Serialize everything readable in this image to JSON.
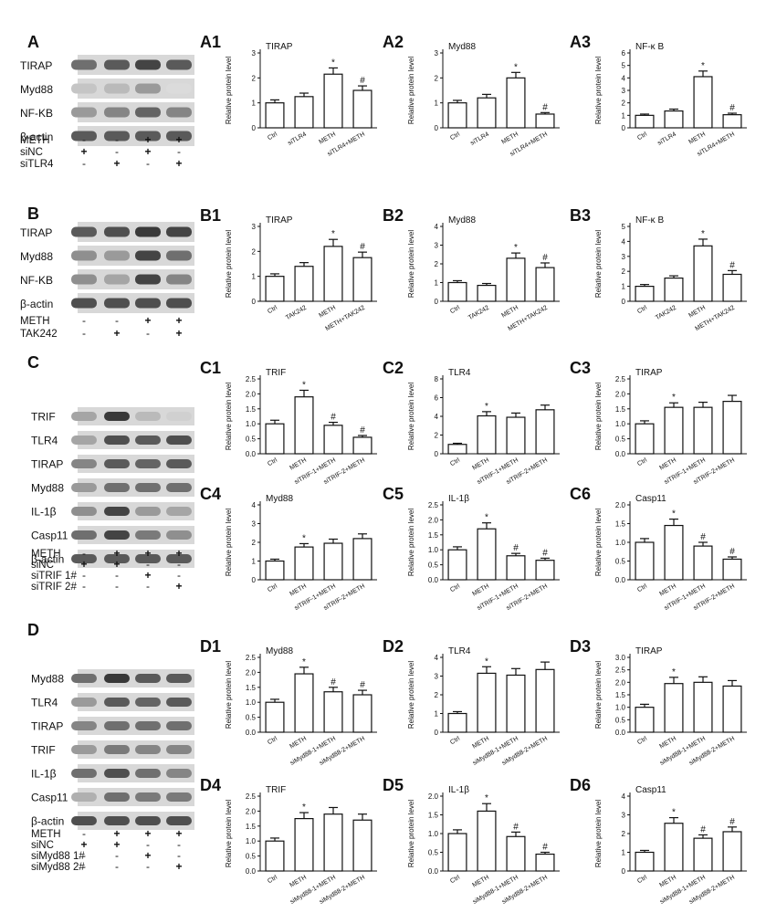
{
  "panels": [
    {
      "id": "A",
      "row_labels": [
        "TIRAP",
        "Myd88",
        "NF-KB",
        "β-actin"
      ],
      "cond_labels": [
        "METH",
        "siNC",
        "siTLR4"
      ],
      "cond_signs": [
        [
          "-",
          "-",
          "+",
          "+"
        ],
        [
          "+",
          "-",
          "+",
          "-"
        ],
        [
          "-",
          "+",
          "-",
          "+"
        ]
      ],
      "band_intensity": [
        [
          0.6,
          0.7,
          0.8,
          0.7
        ],
        [
          0.2,
          0.25,
          0.4,
          0.1
        ],
        [
          0.4,
          0.5,
          0.65,
          0.5
        ],
        [
          0.7,
          0.7,
          0.7,
          0.7
        ]
      ]
    },
    {
      "id": "B",
      "row_labels": [
        "TIRAP",
        "Myd88",
        "NF-KB",
        "β-actin"
      ],
      "cond_labels": [
        "METH",
        "TAK242"
      ],
      "cond_signs": [
        [
          "-",
          "-",
          "+",
          "+"
        ],
        [
          "-",
          "+",
          "-",
          "+"
        ]
      ],
      "band_intensity": [
        [
          0.7,
          0.75,
          0.85,
          0.8
        ],
        [
          0.45,
          0.4,
          0.8,
          0.6
        ],
        [
          0.45,
          0.35,
          0.8,
          0.5
        ],
        [
          0.75,
          0.75,
          0.75,
          0.75
        ]
      ]
    },
    {
      "id": "C",
      "row_labels": [
        "TRIF",
        "TLR4",
        "TIRAP",
        "Myd88",
        "IL-1β",
        "Casp11",
        "β-actin"
      ],
      "cond_labels": [
        "METH",
        "siNC",
        "siTRIF 1#",
        "siTRIF 2#"
      ],
      "cond_signs": [
        [
          "-",
          "+",
          "+",
          "+"
        ],
        [
          "+",
          "+",
          "-",
          "-"
        ],
        [
          "-",
          "-",
          "+",
          "-"
        ],
        [
          "-",
          "-",
          "-",
          "+"
        ]
      ],
      "band_intensity": [
        [
          0.35,
          0.85,
          0.25,
          0.15
        ],
        [
          0.35,
          0.75,
          0.7,
          0.75
        ],
        [
          0.5,
          0.7,
          0.65,
          0.7
        ],
        [
          0.4,
          0.6,
          0.6,
          0.6
        ],
        [
          0.45,
          0.8,
          0.4,
          0.35
        ],
        [
          0.6,
          0.8,
          0.55,
          0.45
        ],
        [
          0.7,
          0.7,
          0.7,
          0.7
        ]
      ]
    },
    {
      "id": "D",
      "row_labels": [
        "Myd88",
        "TLR4",
        "TIRAP",
        "TRIF",
        "IL-1β",
        "Casp11",
        "β-actin"
      ],
      "cond_labels": [
        "METH",
        "siNC",
        "siMyd88 1#",
        "siMyd88 2#"
      ],
      "cond_signs": [
        [
          "-",
          "+",
          "+",
          "+"
        ],
        [
          "+",
          "+",
          "-",
          "-"
        ],
        [
          "-",
          "-",
          "+",
          "-"
        ],
        [
          "-",
          "-",
          "-",
          "+"
        ]
      ],
      "band_intensity": [
        [
          0.6,
          0.85,
          0.7,
          0.7
        ],
        [
          0.4,
          0.7,
          0.65,
          0.7
        ],
        [
          0.5,
          0.6,
          0.6,
          0.6
        ],
        [
          0.4,
          0.55,
          0.5,
          0.5
        ],
        [
          0.6,
          0.75,
          0.6,
          0.5
        ],
        [
          0.3,
          0.6,
          0.55,
          0.55
        ],
        [
          0.75,
          0.75,
          0.75,
          0.75
        ]
      ]
    }
  ],
  "chart_data": [
    {
      "id": "A1",
      "type": "bar",
      "title": "TIRAP",
      "ylabel": "Relative protein level",
      "categories": [
        "Ctrl",
        "siTLR4",
        "METH",
        "siTLR4+METH"
      ],
      "values": [
        1.0,
        1.25,
        2.15,
        1.5
      ],
      "errors": [
        0.12,
        0.14,
        0.25,
        0.18
      ],
      "annotations": [
        "",
        "",
        "*",
        "#"
      ],
      "ylim": [
        0,
        3
      ],
      "ticks": [
        0,
        1,
        2,
        3
      ]
    },
    {
      "id": "A2",
      "type": "bar",
      "title": "Myd88",
      "ylabel": "Relative protein level",
      "categories": [
        "Ctrl",
        "siTLR4",
        "METH",
        "siTLR4+METH"
      ],
      "values": [
        1.0,
        1.2,
        2.0,
        0.55
      ],
      "errors": [
        0.1,
        0.14,
        0.22,
        0.06
      ],
      "annotations": [
        "",
        "",
        "*",
        "#"
      ],
      "ylim": [
        0,
        3
      ],
      "ticks": [
        0,
        1,
        2,
        3
      ]
    },
    {
      "id": "A3",
      "type": "bar",
      "title": "NF-κ B",
      "ylabel": "Relative protein level",
      "categories": [
        "Ctrl",
        "siTLR4",
        "METH",
        "siTLR4+METH"
      ],
      "values": [
        1.0,
        1.35,
        4.1,
        1.05
      ],
      "errors": [
        0.1,
        0.15,
        0.45,
        0.12
      ],
      "annotations": [
        "",
        "",
        "*",
        "#"
      ],
      "ylim": [
        0,
        6
      ],
      "ticks": [
        0,
        1,
        2,
        3,
        4,
        5,
        6
      ]
    },
    {
      "id": "B1",
      "type": "bar",
      "title": "TIRAP",
      "ylabel": "Relative protein level",
      "categories": [
        "Ctrl",
        "TAK242",
        "METH",
        "METH+TAK242"
      ],
      "values": [
        1.0,
        1.4,
        2.2,
        1.75
      ],
      "errors": [
        0.1,
        0.15,
        0.28,
        0.22
      ],
      "annotations": [
        "",
        "",
        "*",
        "#"
      ],
      "ylim": [
        0,
        3
      ],
      "ticks": [
        0,
        1,
        2,
        3
      ]
    },
    {
      "id": "B2",
      "type": "bar",
      "title": "Myd88",
      "ylabel": "Relative protein level",
      "categories": [
        "Ctrl",
        "TAK242",
        "METH",
        "METH+TAK242"
      ],
      "values": [
        1.0,
        0.85,
        2.3,
        1.8
      ],
      "errors": [
        0.1,
        0.1,
        0.28,
        0.25
      ],
      "annotations": [
        "",
        "",
        "*",
        "#"
      ],
      "ylim": [
        0,
        4
      ],
      "ticks": [
        0,
        1,
        2,
        3,
        4
      ]
    },
    {
      "id": "B3",
      "type": "bar",
      "title": "NF-κ B",
      "ylabel": "Relative protein level",
      "categories": [
        "Ctrl",
        "TAK242",
        "METH",
        "METH+TAK242"
      ],
      "values": [
        1.0,
        1.55,
        3.7,
        1.8
      ],
      "errors": [
        0.12,
        0.15,
        0.45,
        0.25
      ],
      "annotations": [
        "",
        "",
        "*",
        "#"
      ],
      "ylim": [
        0,
        5
      ],
      "ticks": [
        0,
        1,
        2,
        3,
        4,
        5
      ]
    },
    {
      "id": "C1",
      "type": "bar",
      "title": "TRIF",
      "ylabel": "Relative protein level",
      "categories": [
        "Ctrl",
        "METH",
        "siTRIF-1+METH",
        "siTRIF-2+METH"
      ],
      "values": [
        1.0,
        1.9,
        0.95,
        0.55
      ],
      "errors": [
        0.12,
        0.22,
        0.1,
        0.06
      ],
      "annotations": [
        "",
        "*",
        "#",
        "#"
      ],
      "ylim": [
        0,
        2.5
      ],
      "ticks": [
        0,
        0.5,
        1.0,
        1.5,
        2.0,
        2.5
      ]
    },
    {
      "id": "C2",
      "type": "bar",
      "title": "TLR4",
      "ylabel": "Relative protein level",
      "categories": [
        "Ctrl",
        "METH",
        "siTRIF-1+METH",
        "siTRIF-2+METH"
      ],
      "values": [
        1.0,
        4.05,
        3.9,
        4.7
      ],
      "errors": [
        0.12,
        0.45,
        0.45,
        0.5
      ],
      "annotations": [
        "",
        "*",
        "",
        ""
      ],
      "ylim": [
        0,
        8
      ],
      "ticks": [
        0,
        2,
        4,
        6,
        8
      ]
    },
    {
      "id": "C3",
      "type": "bar",
      "title": "TIRAP",
      "ylabel": "Relative protein level",
      "categories": [
        "Ctrl",
        "METH",
        "siTRIF-1+METH",
        "siTRIF-2+METH"
      ],
      "values": [
        1.0,
        1.55,
        1.55,
        1.75
      ],
      "errors": [
        0.1,
        0.15,
        0.17,
        0.2
      ],
      "annotations": [
        "",
        "*",
        "",
        ""
      ],
      "ylim": [
        0,
        2.5
      ],
      "ticks": [
        0,
        0.5,
        1.0,
        1.5,
        2.0,
        2.5
      ]
    },
    {
      "id": "C4",
      "type": "bar",
      "title": "Myd88",
      "ylabel": "Relative protein level",
      "categories": [
        "Ctrl",
        "METH",
        "siTRIF-1+METH",
        "siTRIF-2+METH"
      ],
      "values": [
        1.0,
        1.75,
        1.95,
        2.2
      ],
      "errors": [
        0.1,
        0.18,
        0.22,
        0.25
      ],
      "annotations": [
        "",
        "*",
        "",
        ""
      ],
      "ylim": [
        0,
        4
      ],
      "ticks": [
        0,
        1,
        2,
        3,
        4
      ]
    },
    {
      "id": "C5",
      "type": "bar",
      "title": "IL-1β",
      "ylabel": "Relative protein level",
      "categories": [
        "Ctrl",
        "METH",
        "siTRIF-1+METH",
        "siTRIF-2+METH"
      ],
      "values": [
        1.0,
        1.7,
        0.8,
        0.65
      ],
      "errors": [
        0.1,
        0.2,
        0.08,
        0.07
      ],
      "annotations": [
        "",
        "*",
        "#",
        "#"
      ],
      "ylim": [
        0,
        2.5
      ],
      "ticks": [
        0,
        0.5,
        1.0,
        1.5,
        2.0,
        2.5
      ]
    },
    {
      "id": "C6",
      "type": "bar",
      "title": "Casp11",
      "ylabel": "Relative protein level",
      "categories": [
        "Ctrl",
        "METH",
        "siTRIF-1+METH",
        "siTRIF-2+METH"
      ],
      "values": [
        1.0,
        1.45,
        0.9,
        0.55
      ],
      "errors": [
        0.1,
        0.17,
        0.1,
        0.06
      ],
      "annotations": [
        "",
        "*",
        "#",
        "#"
      ],
      "ylim": [
        0,
        2.0
      ],
      "ticks": [
        0,
        0.5,
        1.0,
        1.5,
        2.0
      ]
    },
    {
      "id": "D1",
      "type": "bar",
      "title": "Myd88",
      "ylabel": "Relative protein level",
      "categories": [
        "Ctrl",
        "METH",
        "siMyd88-1+METH",
        "siMyd88-2+METH"
      ],
      "values": [
        1.0,
        1.95,
        1.35,
        1.25
      ],
      "errors": [
        0.1,
        0.22,
        0.15,
        0.15
      ],
      "annotations": [
        "",
        "*",
        "#",
        "#"
      ],
      "ylim": [
        0,
        2.5
      ],
      "ticks": [
        0,
        0.5,
        1.0,
        1.5,
        2.0,
        2.5
      ]
    },
    {
      "id": "D2",
      "type": "bar",
      "title": "TLR4",
      "ylabel": "Relative protein level",
      "categories": [
        "Ctrl",
        "METH",
        "siMyd88-1+METH",
        "siMyd88-2+METH"
      ],
      "values": [
        1.0,
        3.15,
        3.05,
        3.35
      ],
      "errors": [
        0.1,
        0.35,
        0.35,
        0.4
      ],
      "annotations": [
        "",
        "*",
        "",
        ""
      ],
      "ylim": [
        0,
        4
      ],
      "ticks": [
        0,
        1,
        2,
        3,
        4
      ]
    },
    {
      "id": "D3",
      "type": "bar",
      "title": "TIRAP",
      "ylabel": "Relative protein level",
      "categories": [
        "Ctrl",
        "METH",
        "siMyd88-1+METH",
        "siMyd88-2+METH"
      ],
      "values": [
        1.0,
        1.95,
        2.0,
        1.85
      ],
      "errors": [
        0.12,
        0.25,
        0.22,
        0.22
      ],
      "annotations": [
        "",
        "*",
        "",
        ""
      ],
      "ylim": [
        0,
        3.0
      ],
      "ticks": [
        0,
        0.5,
        1.0,
        1.5,
        2.0,
        2.5,
        3.0
      ]
    },
    {
      "id": "D4",
      "type": "bar",
      "title": "TRIF",
      "ylabel": "Relative protein level",
      "categories": [
        "Ctrl",
        "METH",
        "siMyd88-1+METH",
        "siMyd88-2+METH"
      ],
      "values": [
        1.0,
        1.75,
        1.9,
        1.7
      ],
      "errors": [
        0.1,
        0.2,
        0.22,
        0.2
      ],
      "annotations": [
        "",
        "*",
        "",
        ""
      ],
      "ylim": [
        0,
        2.5
      ],
      "ticks": [
        0,
        0.5,
        1.0,
        1.5,
        2.0,
        2.5
      ]
    },
    {
      "id": "D5",
      "type": "bar",
      "title": "IL-1β",
      "ylabel": "Relative protein level",
      "categories": [
        "Ctrl",
        "METH",
        "siMyd88-1+METH",
        "siMyd88-2+METH"
      ],
      "values": [
        1.0,
        1.6,
        0.92,
        0.45
      ],
      "errors": [
        0.1,
        0.2,
        0.12,
        0.05
      ],
      "annotations": [
        "",
        "*",
        "#",
        "#"
      ],
      "ylim": [
        0,
        2.0
      ],
      "ticks": [
        0,
        0.5,
        1.0,
        1.5,
        2.0
      ]
    },
    {
      "id": "D6",
      "type": "bar",
      "title": "Casp11",
      "ylabel": "Relative protein level",
      "categories": [
        "Ctrl",
        "METH",
        "siMyd88-1+METH",
        "siMyd88-2+METH"
      ],
      "values": [
        1.0,
        2.55,
        1.75,
        2.1
      ],
      "errors": [
        0.1,
        0.3,
        0.18,
        0.25
      ],
      "annotations": [
        "",
        "*",
        "#",
        "#"
      ],
      "ylim": [
        0,
        4
      ],
      "ticks": [
        0,
        1,
        2,
        3,
        4
      ]
    }
  ]
}
